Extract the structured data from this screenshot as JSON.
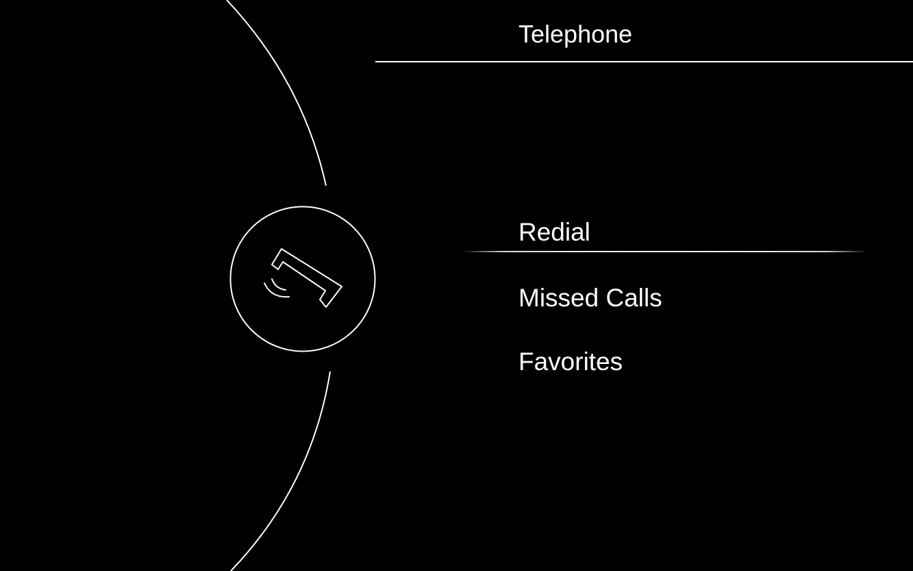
{
  "header": {
    "title": "Telephone"
  },
  "phone_button": {
    "icon": "phone-handset-icon"
  },
  "menu": {
    "items": [
      {
        "label": "Redial",
        "focused": true
      },
      {
        "label": "Missed Calls",
        "focused": false
      },
      {
        "label": "Favorites",
        "focused": false
      }
    ]
  },
  "colors": {
    "background": "#000000",
    "foreground": "#ffffff"
  }
}
